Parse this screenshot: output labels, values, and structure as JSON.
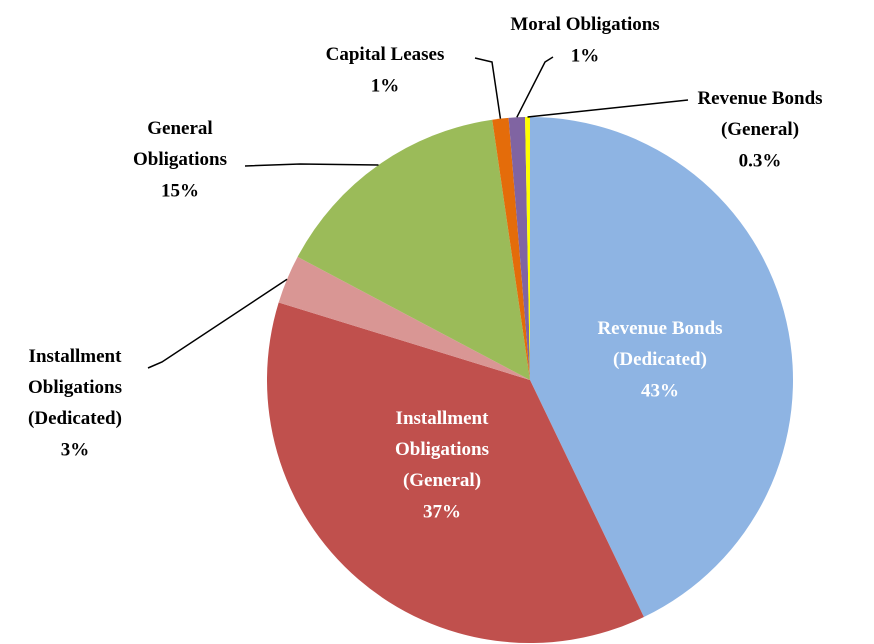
{
  "chart_data": {
    "type": "pie",
    "categories": [
      "Revenue Bonds\n(Dedicated)",
      "Installment\nObligations\n(General)",
      "Installment\nObligations\n(Dedicated)",
      "General\nObligations",
      "Capital Leases",
      "Moral Obligations",
      "Revenue Bonds\n(General)"
    ],
    "values": [
      43,
      37,
      3,
      15,
      1,
      1,
      0.3
    ],
    "value_labels": [
      "43%",
      "37%",
      "3%",
      "15%",
      "1%",
      "1%",
      "0.3%"
    ],
    "colors": [
      "#8eb4e3",
      "#c0504d",
      "#d99694",
      "#9bbb59",
      "#e46c0a",
      "#8064a2",
      "#ffff00"
    ]
  }
}
